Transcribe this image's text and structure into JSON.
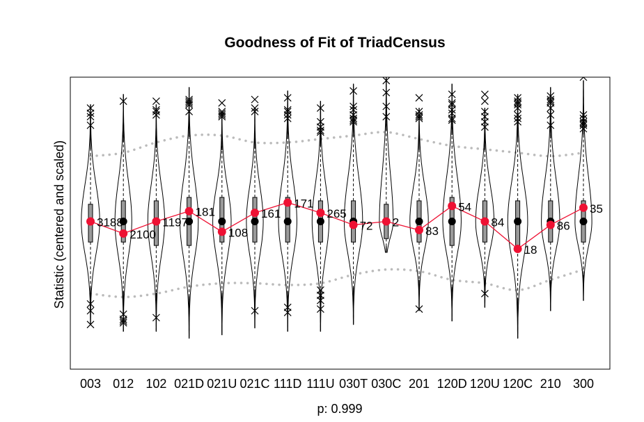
{
  "chart_data": {
    "type": "violin",
    "title": "Goodness of Fit of TriadCensus",
    "ylabel": "Statistic (centered and scaled)",
    "xlabel": "p: 0.999",
    "ylim": [
      -4.3,
      4.2
    ],
    "categories": [
      "003",
      "012",
      "102",
      "021D",
      "021U",
      "021C",
      "111D",
      "111U",
      "030T",
      "030C",
      "201",
      "120D",
      "120U",
      "120C",
      "210",
      "300"
    ],
    "observed": {
      "labels": [
        "3188",
        "2100",
        "1197",
        "181",
        "108",
        "161",
        "171",
        "265",
        "72",
        "2",
        "83",
        "54",
        "84",
        "18",
        "86",
        "35"
      ],
      "values": [
        0.0,
        -0.35,
        0.0,
        0.3,
        -0.3,
        0.25,
        0.55,
        0.25,
        -0.1,
        0.0,
        -0.25,
        0.45,
        0.0,
        -0.8,
        -0.1,
        0.4
      ]
    },
    "simulated_median": [
      0.0,
      0.0,
      0.0,
      0.0,
      0.0,
      0.0,
      0.0,
      0.0,
      0.0,
      0.0,
      0.0,
      0.0,
      0.0,
      0.0,
      0.0,
      0.0
    ],
    "quartiles": [
      [
        -0.6,
        0.5
      ],
      [
        -0.6,
        0.6
      ],
      [
        -0.7,
        0.6
      ],
      [
        -0.7,
        0.7
      ],
      [
        -0.6,
        0.7
      ],
      [
        -0.6,
        0.7
      ],
      [
        -0.6,
        0.7
      ],
      [
        -0.6,
        0.6
      ],
      [
        -0.6,
        0.6
      ],
      [
        -0.5,
        0.5
      ],
      [
        -0.6,
        0.6
      ],
      [
        -0.7,
        0.7
      ],
      [
        -0.6,
        0.6
      ],
      [
        -0.8,
        0.6
      ],
      [
        -0.6,
        0.6
      ],
      [
        -0.6,
        0.6
      ]
    ],
    "whiskers": [
      [
        -3.0,
        3.4
      ],
      [
        -3.2,
        3.7
      ],
      [
        -3.2,
        3.4
      ],
      [
        -3.4,
        3.9
      ],
      [
        -3.3,
        3.2
      ],
      [
        -3.1,
        3.3
      ],
      [
        -3.2,
        3.8
      ],
      [
        -3.2,
        3.5
      ],
      [
        -3.0,
        4.0
      ],
      [
        -0.9,
        4.4
      ],
      [
        -2.6,
        3.3
      ],
      [
        -2.9,
        4.0
      ],
      [
        -2.5,
        3.3
      ],
      [
        -3.4,
        3.7
      ],
      [
        -2.6,
        3.9
      ],
      [
        -2.3,
        4.1
      ]
    ],
    "outliers": [
      [
        3.3,
        3.05,
        3.15,
        2.8,
        -2.4,
        -2.6,
        -3.0
      ],
      [
        3.5,
        -2.7,
        -2.85,
        -2.9,
        -2.95
      ],
      [
        3.5,
        3.2,
        3.1,
        3.25,
        -2.8
      ],
      [
        3.5,
        3.4,
        3.55,
        3.45,
        3.2
      ],
      [
        3.45,
        3.2,
        3.05,
        3.15,
        3.1
      ],
      [
        3.55,
        3.3,
        3.2,
        -2.6
      ],
      [
        3.6,
        3.1,
        3.0,
        3.2,
        3.25,
        -2.5,
        -2.65
      ],
      [
        3.3,
        2.9,
        2.75,
        2.6,
        2.65,
        -2.0,
        -2.15,
        -2.3,
        -2.55
      ],
      [
        3.8,
        3.35,
        3.25,
        3.1,
        3.0,
        2.95,
        2.9
      ],
      [
        5.2,
        5.0,
        4.6,
        4.4,
        4.1,
        3.75,
        3.35,
        3.05
      ],
      [
        3.6,
        3.0,
        3.1,
        3.2,
        3.05,
        -2.55
      ],
      [
        3.7,
        3.4,
        3.25,
        3.15,
        3.0,
        2.95,
        3.45
      ],
      [
        3.7,
        3.5,
        3.2,
        3.05,
        2.9,
        2.75,
        -2.1
      ],
      [
        3.6,
        3.5,
        3.4,
        3.3,
        3.45,
        3.1,
        3.0,
        2.9
      ],
      [
        3.65,
        3.55,
        3.5,
        3.45,
        3.3,
        3.1,
        2.8
      ],
      [
        4.2,
        2.85,
        3.0,
        2.9,
        2.8,
        2.7,
        3.1
      ]
    ],
    "violin_halfwidth": [
      0.6,
      0.55,
      0.55,
      0.6,
      0.6,
      0.55,
      0.6,
      0.55,
      0.6,
      0.45,
      0.6,
      0.6,
      0.6,
      0.65,
      0.6,
      0.55
    ],
    "band_upper": [
      1.9,
      2.0,
      2.3,
      2.5,
      2.5,
      2.3,
      2.3,
      2.4,
      2.5,
      2.6,
      2.4,
      2.2,
      2.1,
      2.0,
      1.9,
      2.0
    ],
    "band_lower": [
      -2.1,
      -2.2,
      -2.1,
      -1.9,
      -1.8,
      -1.8,
      -1.85,
      -1.8,
      -1.55,
      -1.4,
      -1.45,
      -1.7,
      -1.8,
      -2.0,
      -1.7,
      -1.4
    ],
    "colors": {
      "observed": "#ee1133",
      "median": "#000000",
      "band": "#bbbbbb",
      "box": "#9a9a9a"
    }
  }
}
